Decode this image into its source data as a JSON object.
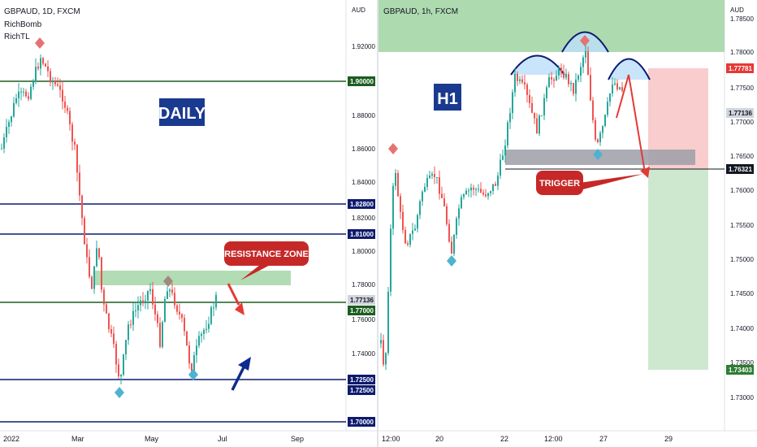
{
  "left_chart": {
    "title": "GBPAUD, 1D, FXCM",
    "indicators": [
      "RichBomb",
      "RichTL"
    ],
    "currency": "AUD",
    "label_box": "DAILY",
    "callout": "RESISTANCE ZONE",
    "x_labels": [
      "2022",
      "Mar",
      "May",
      "Jul",
      "Sep"
    ],
    "y_labels": [
      "1.92000",
      "1.88000",
      "1.86000",
      "1.84000",
      "1.82000",
      "1.80000",
      "1.78000",
      "1.76000",
      "1.74000"
    ],
    "price_tags": [
      {
        "text": "1.90000",
        "bg": "#1b5e20",
        "fg": "#ffffff"
      },
      {
        "text": "1.82800",
        "bg": "#0d1b6e",
        "fg": "#ffffff"
      },
      {
        "text": "1.81000",
        "bg": "#0d1b6e",
        "fg": "#ffffff"
      },
      {
        "text": "1.77136",
        "bg": "#d1d4dc",
        "fg": "#131722"
      },
      {
        "text": "1.77000",
        "bg": "#1b5e20",
        "fg": "#ffffff"
      },
      {
        "text": "1.72500",
        "bg": "#0d1b6e",
        "fg": "#ffffff"
      },
      {
        "text": "1.72500",
        "bg": "#0d1b6e",
        "fg": "#ffffff"
      },
      {
        "text": "1.70000",
        "bg": "#0d1b6e",
        "fg": "#ffffff"
      }
    ]
  },
  "right_chart": {
    "title": "GBPAUD, 1h, FXCM",
    "currency": "AUD",
    "label_box": "H1",
    "callout": "TRIGGER",
    "x_labels": [
      "12:00",
      "20",
      "22",
      "12:00",
      "27",
      "29"
    ],
    "y_labels": [
      "1.78500",
      "1.78000",
      "1.77500",
      "1.77000",
      "1.76500",
      "1.76000",
      "1.75500",
      "1.75000",
      "1.74500",
      "1.74000",
      "1.73500",
      "1.73000"
    ],
    "price_tags": [
      {
        "text": "1.77781",
        "bg": "#e53935",
        "fg": "#ffffff"
      },
      {
        "text": "1.77136",
        "bg": "#d1d4dc",
        "fg": "#131722"
      },
      {
        "text": "1.76321",
        "bg": "#131722",
        "fg": "#ffffff"
      },
      {
        "text": "1.73403",
        "bg": "#2e7d32",
        "fg": "#ffffff"
      }
    ]
  },
  "colors": {
    "bull": "#26a69a",
    "bear": "#ef5350",
    "green_line": "#1b5e20",
    "navy_line": "#0d1b6e",
    "zone_green": "#a5d6a7",
    "zone_gray": "#9e9ea8",
    "label_box": "#1a3a8f",
    "callout": "#c62828"
  }
}
